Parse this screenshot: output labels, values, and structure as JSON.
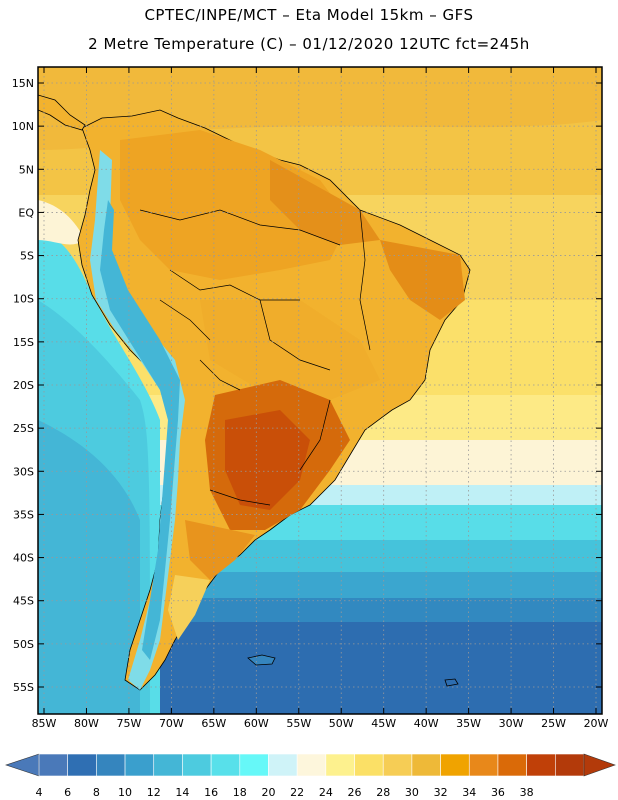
{
  "header": {
    "line1": "CPTEC/INPE/MCT –  Eta Model 15km – GFS",
    "line2": "2 Metre Temperature (C) – 01/12/2020 12UTC fct=245h"
  },
  "map": {
    "lat_labels": [
      "15N",
      "10N",
      "5N",
      "EQ",
      "5S",
      "10S",
      "15S",
      "20S",
      "25S",
      "30S",
      "35S",
      "40S",
      "45S",
      "50S",
      "55S"
    ],
    "lat_values": [
      15,
      10,
      5,
      0,
      -5,
      -10,
      -15,
      -20,
      -25,
      -30,
      -35,
      -40,
      -45,
      -50,
      -55
    ],
    "lon_labels": [
      "85W",
      "80W",
      "75W",
      "70W",
      "65W",
      "60W",
      "55W",
      "50W",
      "45W",
      "40W",
      "35W",
      "30W",
      "25W",
      "20W"
    ],
    "lon_values": [
      -85,
      -80,
      -75,
      -70,
      -65,
      -60,
      -55,
      -50,
      -45,
      -40,
      -35,
      -30,
      -25,
      -20
    ]
  },
  "colorbar": {
    "labels": [
      "4",
      "6",
      "8",
      "10",
      "12",
      "14",
      "16",
      "18",
      "20",
      "22",
      "24",
      "26",
      "28",
      "30",
      "32",
      "34",
      "36",
      "38"
    ],
    "colors": [
      "#4a79b9",
      "#2f6fb3",
      "#3585be",
      "#3a9fcd",
      "#44b6d6",
      "#4dcbdf",
      "#58e0ea",
      "#66f8f8",
      "#cff3f8",
      "#fdf6dc",
      "#fdf18e",
      "#fbe066",
      "#f6cd55",
      "#eeb938",
      "#f0a300",
      "#e8881a",
      "#da6a08",
      "#c04008",
      "#b33a0a"
    ],
    "left_arrow_color": "#4a79b9",
    "right_arrow_color": "#b33a0a"
  }
}
